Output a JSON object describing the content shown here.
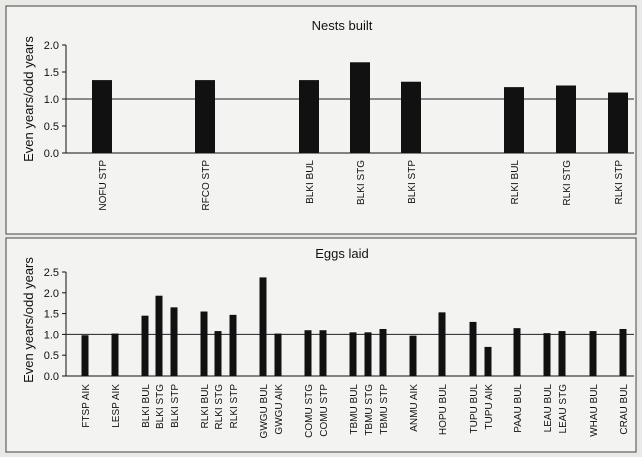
{
  "chart_data": [
    {
      "type": "bar",
      "title": "Nests built",
      "ylabel": "Even years/odd years",
      "xlabel": "",
      "ylim": [
        0,
        2.0
      ],
      "yticks": [
        "0.0",
        "0.5",
        "1.0",
        "1.5",
        "2.0"
      ],
      "reference_line": 1.0,
      "grid": false,
      "categories": [
        "NOFU STP",
        "RFCO STP",
        "BLKI BUL",
        "BLKI STG",
        "BLKI STP",
        "RLKI BUL",
        "RLKI STG",
        "RLKI STP"
      ],
      "values": [
        1.35,
        1.35,
        1.35,
        1.68,
        1.32,
        1.22,
        1.25,
        1.12
      ]
    },
    {
      "type": "bar",
      "title": "Eggs laid",
      "ylabel": "Even years/odd years",
      "xlabel": "",
      "ylim": [
        0,
        2.5
      ],
      "yticks": [
        "0.0",
        "0.5",
        "1.0",
        "1.5",
        "2.0",
        "2.5"
      ],
      "reference_line": 1.0,
      "grid": false,
      "categories": [
        "FTSP AIK",
        "LESP AIK",
        "BLKI BUL",
        "BLKI STG",
        "BLKI STP",
        "RLKI BUL",
        "RLKI STG",
        "RLKI STP",
        "GWGU BUL",
        "GWGU AIK",
        "COMU STG",
        "COMU STP",
        "TBMU BUL",
        "TBMU STG",
        "TBMU STP",
        "ANMU AIK",
        "HOPU BUL",
        "TUPU BUL",
        "TUPU AIK",
        "PAAU BUL",
        "LEAU BUL",
        "LEAU STG",
        "WHAU BUL",
        "CRAU BUL"
      ],
      "values": [
        0.98,
        1.02,
        1.45,
        1.93,
        1.65,
        1.55,
        1.08,
        1.47,
        2.37,
        1.02,
        1.1,
        1.1,
        1.05,
        1.05,
        1.13,
        0.97,
        1.53,
        1.3,
        0.7,
        1.15,
        1.03,
        1.08,
        1.08,
        1.13
      ]
    }
  ]
}
